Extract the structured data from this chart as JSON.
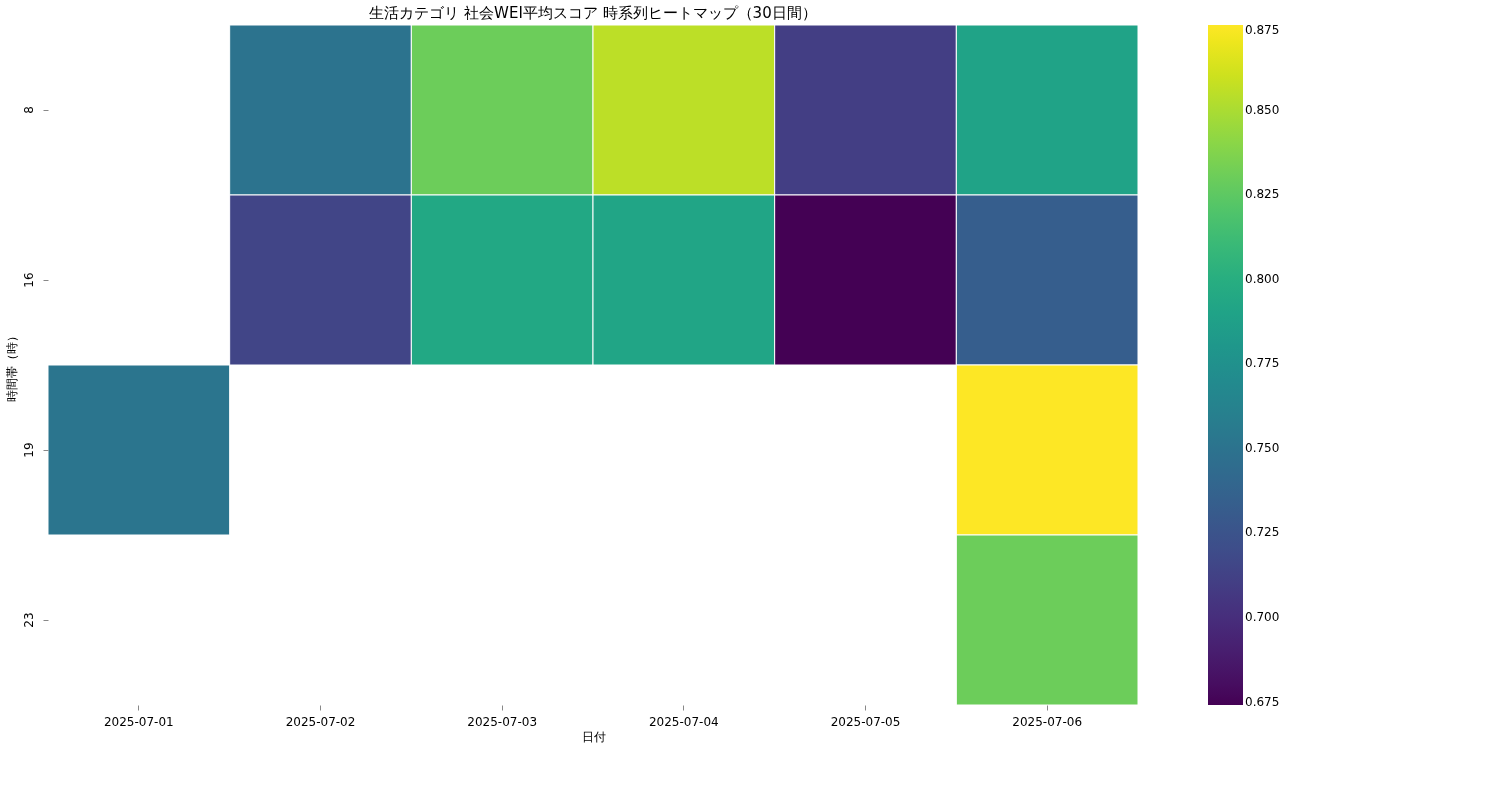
{
  "chart_data": {
    "type": "heatmap",
    "title": "生活カテゴリ 社会WEI平均スコア 時系列ヒートマップ（30日間）",
    "xlabel": "日付",
    "ylabel": "時間帯（時）",
    "categories": [
      "2025-07-01",
      "2025-07-02",
      "2025-07-03",
      "2025-07-04",
      "2025-07-05",
      "2025-07-06"
    ],
    "y_categories": [
      "8",
      "16",
      "19",
      "23"
    ],
    "cells": [
      [
        null,
        0.75,
        0.83,
        0.855,
        0.71,
        0.79
      ],
      [
        null,
        0.715,
        0.795,
        0.792,
        0.674,
        0.733
      ],
      [
        0.752,
        null,
        null,
        null,
        null,
        0.875
      ],
      [
        null,
        null,
        null,
        null,
        null,
        0.83
      ]
    ],
    "clim": [
      0.674,
      0.875
    ],
    "cticks": [
      0.675,
      {
        "value": 0.7,
        "label": "0.700"
      },
      0.725,
      {
        "value": 0.75,
        "label": "0.750"
      },
      0.775,
      {
        "value": 0.8,
        "label": "0.800"
      },
      0.825,
      {
        "value": 0.85,
        "label": "0.850"
      },
      0.875
    ],
    "grid": false
  }
}
